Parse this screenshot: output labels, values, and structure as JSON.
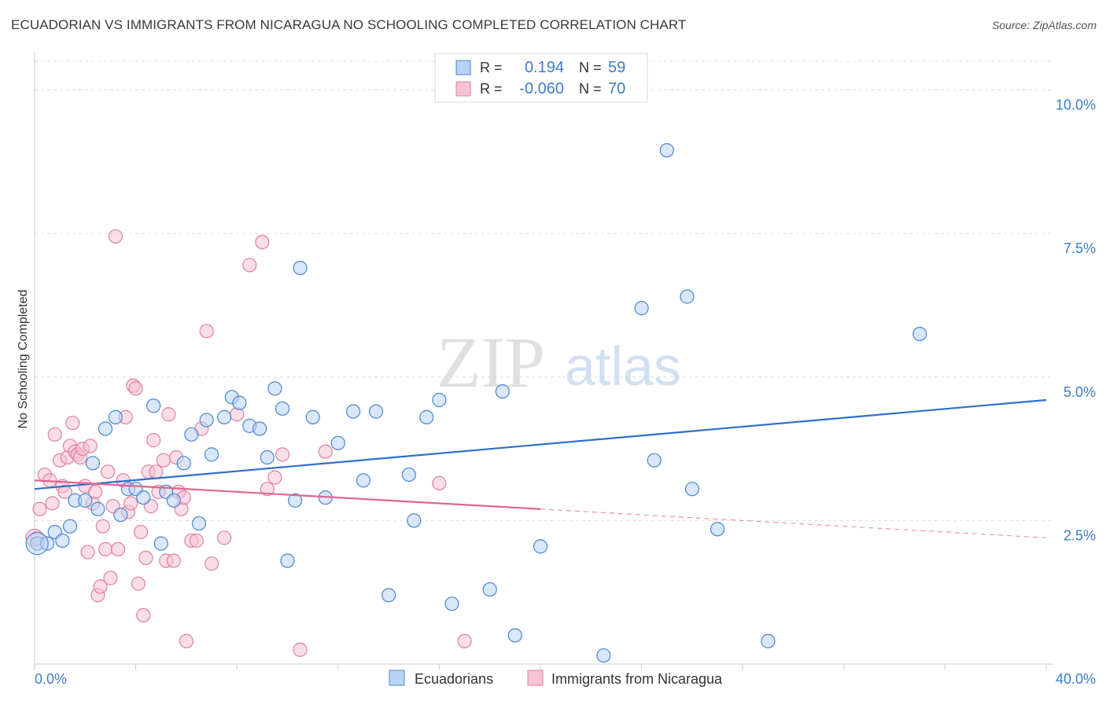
{
  "title": "ECUADORIAN VS IMMIGRANTS FROM NICARAGUA NO SCHOOLING COMPLETED CORRELATION CHART",
  "source": "Source: ZipAtlas.com",
  "watermark": {
    "part1": "ZIP",
    "part2": "atlas"
  },
  "colors": {
    "blue": "#4a86d0",
    "blue_fill": "#b9d3f3",
    "blue_line": "#2f6fcc",
    "pink": "#e07fa2",
    "pink_fill": "#f6c3d3",
    "pink_line": "#e0658f",
    "axis_text": "#3d7cc9",
    "grid": "#dddddd"
  },
  "legend": {
    "r_label": "R =",
    "n_label": "N =",
    "rows": [
      {
        "r": "0.194",
        "n": "59"
      },
      {
        "r": "-0.060",
        "n": "70"
      }
    ]
  },
  "chart_data": {
    "type": "scatter",
    "xlabel": "",
    "ylabel": "No Schooling Completed",
    "xlim": [
      0,
      40
    ],
    "ylim": [
      0,
      10.5
    ],
    "x_ticks_labels": [
      "0.0%",
      "40.0%"
    ],
    "y_ticks": [
      2.5,
      5.0,
      7.5,
      10.0
    ],
    "y_tick_labels": [
      "2.5%",
      "5.0%",
      "7.5%",
      "10.0%"
    ],
    "grid": true,
    "legend_position": "top-center",
    "series": [
      {
        "name": "Ecuadorians",
        "trend": {
          "x": [
            0,
            40
          ],
          "y": [
            3.05,
            4.6
          ]
        },
        "points": [
          [
            0.1,
            2.1
          ],
          [
            0.5,
            2.1
          ],
          [
            0.8,
            2.3
          ],
          [
            1.1,
            2.15
          ],
          [
            1.4,
            2.4
          ],
          [
            1.6,
            2.85
          ],
          [
            2.0,
            2.85
          ],
          [
            2.3,
            3.5
          ],
          [
            2.5,
            2.7
          ],
          [
            2.8,
            4.1
          ],
          [
            3.2,
            4.3
          ],
          [
            3.4,
            2.6
          ],
          [
            3.7,
            3.05
          ],
          [
            4.0,
            3.05
          ],
          [
            4.3,
            2.9
          ],
          [
            4.7,
            4.5
          ],
          [
            5.0,
            2.1
          ],
          [
            5.2,
            3.0
          ],
          [
            5.5,
            2.85
          ],
          [
            5.9,
            3.5
          ],
          [
            6.2,
            4.0
          ],
          [
            6.5,
            2.45
          ],
          [
            6.8,
            4.25
          ],
          [
            7.0,
            3.65
          ],
          [
            7.5,
            4.3
          ],
          [
            7.8,
            4.65
          ],
          [
            8.1,
            4.55
          ],
          [
            8.5,
            4.15
          ],
          [
            8.9,
            4.1
          ],
          [
            9.2,
            3.6
          ],
          [
            9.5,
            4.8
          ],
          [
            9.8,
            4.45
          ],
          [
            10.0,
            1.8
          ],
          [
            10.3,
            2.85
          ],
          [
            10.5,
            6.9
          ],
          [
            11.0,
            4.3
          ],
          [
            11.5,
            2.9
          ],
          [
            12.0,
            3.85
          ],
          [
            12.6,
            4.4
          ],
          [
            13.0,
            3.2
          ],
          [
            13.5,
            4.4
          ],
          [
            14.0,
            1.2
          ],
          [
            14.8,
            3.3
          ],
          [
            15.0,
            2.5
          ],
          [
            15.5,
            4.3
          ],
          [
            16.0,
            4.6
          ],
          [
            16.5,
            1.05
          ],
          [
            18.0,
            1.3
          ],
          [
            18.5,
            4.75
          ],
          [
            19.0,
            0.5
          ],
          [
            20.0,
            2.05
          ],
          [
            22.5,
            0.15
          ],
          [
            24.0,
            6.2
          ],
          [
            24.5,
            3.55
          ],
          [
            25.0,
            8.95
          ],
          [
            25.8,
            6.4
          ],
          [
            26.0,
            3.05
          ],
          [
            27.0,
            2.35
          ],
          [
            29.0,
            0.4
          ],
          [
            35.0,
            5.75
          ]
        ]
      },
      {
        "name": "Immigrants from Nicaragua",
        "trend": {
          "x": [
            0,
            20
          ],
          "y": [
            3.2,
            2.7
          ]
        },
        "trend_dashed": {
          "x": [
            20,
            40
          ],
          "y": [
            2.7,
            2.2
          ]
        },
        "points": [
          [
            0.1,
            2.2
          ],
          [
            0.2,
            2.7
          ],
          [
            0.4,
            3.3
          ],
          [
            0.6,
            3.2
          ],
          [
            0.7,
            2.8
          ],
          [
            0.8,
            4.0
          ],
          [
            1.0,
            3.55
          ],
          [
            1.1,
            3.1
          ],
          [
            1.2,
            3.0
          ],
          [
            1.3,
            3.6
          ],
          [
            1.4,
            3.8
          ],
          [
            1.5,
            4.2
          ],
          [
            1.6,
            3.7
          ],
          [
            1.7,
            3.65
          ],
          [
            1.8,
            3.6
          ],
          [
            1.9,
            3.75
          ],
          [
            2.0,
            3.1
          ],
          [
            2.1,
            1.95
          ],
          [
            2.2,
            3.8
          ],
          [
            2.3,
            2.8
          ],
          [
            2.4,
            3.0
          ],
          [
            2.5,
            1.2
          ],
          [
            2.6,
            1.35
          ],
          [
            2.7,
            2.4
          ],
          [
            2.8,
            2.0
          ],
          [
            2.9,
            3.35
          ],
          [
            3.0,
            1.5
          ],
          [
            3.1,
            2.75
          ],
          [
            3.2,
            7.45
          ],
          [
            3.3,
            2.0
          ],
          [
            3.5,
            3.2
          ],
          [
            3.6,
            4.3
          ],
          [
            3.7,
            2.65
          ],
          [
            3.8,
            2.8
          ],
          [
            3.9,
            4.85
          ],
          [
            4.0,
            4.8
          ],
          [
            4.1,
            1.4
          ],
          [
            4.2,
            2.3
          ],
          [
            4.3,
            0.85
          ],
          [
            4.4,
            1.85
          ],
          [
            4.5,
            3.35
          ],
          [
            4.6,
            2.75
          ],
          [
            4.7,
            3.9
          ],
          [
            4.8,
            3.35
          ],
          [
            4.9,
            3.0
          ],
          [
            5.1,
            3.55
          ],
          [
            5.2,
            1.8
          ],
          [
            5.3,
            4.35
          ],
          [
            5.5,
            1.8
          ],
          [
            5.6,
            3.6
          ],
          [
            5.7,
            3.0
          ],
          [
            5.8,
            2.7
          ],
          [
            5.9,
            2.9
          ],
          [
            6.0,
            0.4
          ],
          [
            6.2,
            2.15
          ],
          [
            6.4,
            2.15
          ],
          [
            6.6,
            4.1
          ],
          [
            6.8,
            5.8
          ],
          [
            7.0,
            1.75
          ],
          [
            7.5,
            2.2
          ],
          [
            8.5,
            6.95
          ],
          [
            9.0,
            7.35
          ],
          [
            9.2,
            3.05
          ],
          [
            9.5,
            3.25
          ],
          [
            9.8,
            3.65
          ],
          [
            10.5,
            0.25
          ],
          [
            11.5,
            3.7
          ],
          [
            16.0,
            3.15
          ],
          [
            17.0,
            0.4
          ],
          [
            8.0,
            4.35
          ]
        ]
      }
    ]
  }
}
